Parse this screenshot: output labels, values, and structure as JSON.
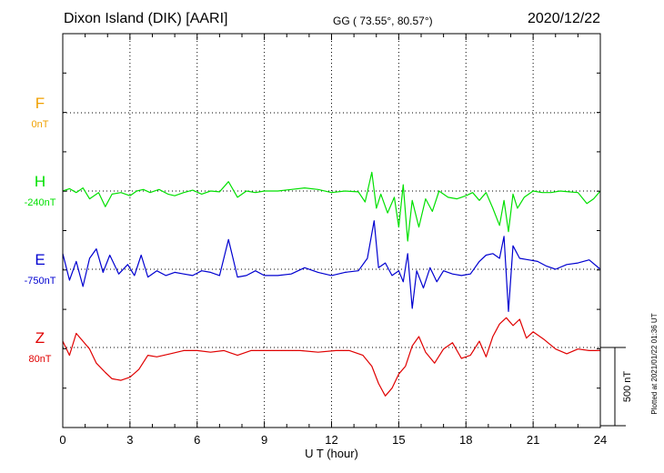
{
  "header": {
    "station": "Dixon Island (DIK)  [AARI]",
    "coords": "GG ( 73.55°,  80.57°)",
    "date": "2020/12/22"
  },
  "footer": {
    "plotted": "Plotted at 2021/01/22 01:36 UT"
  },
  "colors": {
    "F": "#f0a000",
    "H": "#00e000",
    "E": "#0000d0",
    "Z": "#e00000",
    "axis": "#000000",
    "grid": "#000000"
  },
  "chart_data": {
    "type": "line",
    "xlabel": "U T (hour)",
    "xlim": [
      0,
      24
    ],
    "x_ticks": [
      "0",
      "3",
      "6",
      "9",
      "12",
      "15",
      "18",
      "21",
      "24"
    ],
    "scale_label": "500 nT",
    "scale_nT": 500,
    "series": [
      {
        "name": "F",
        "baseline": "0nT",
        "values": []
      },
      {
        "name": "H",
        "baseline": "-240nT",
        "x": [
          0,
          0.3,
          0.6,
          0.9,
          1.2,
          1.6,
          1.9,
          2.2,
          2.6,
          3.0,
          3.3,
          3.6,
          3.9,
          4.3,
          4.7,
          5.0,
          5.4,
          5.8,
          6.2,
          6.6,
          7.0,
          7.4,
          7.8,
          8.2,
          8.6,
          9.0,
          9.6,
          10.2,
          10.8,
          11.4,
          12.0,
          12.6,
          13.2,
          13.5,
          13.8,
          14.0,
          14.2,
          14.5,
          14.8,
          15.0,
          15.2,
          15.4,
          15.6,
          15.9,
          16.2,
          16.5,
          16.8,
          17.2,
          17.6,
          18.0,
          18.3,
          18.6,
          18.9,
          19.2,
          19.5,
          19.7,
          19.9,
          20.1,
          20.3,
          20.6,
          21.0,
          21.4,
          21.8,
          22.2,
          22.6,
          23.0,
          23.4,
          23.7,
          24.0
        ],
        "values": [
          -240,
          -225,
          -250,
          -220,
          -290,
          -250,
          -340,
          -260,
          -250,
          -270,
          -240,
          -230,
          -250,
          -230,
          -260,
          -270,
          -250,
          -235,
          -260,
          -240,
          -245,
          -180,
          -280,
          -240,
          -250,
          -240,
          -240,
          -230,
          -220,
          -230,
          -250,
          -240,
          -245,
          -310,
          -120,
          -350,
          -260,
          -380,
          -280,
          -470,
          -200,
          -560,
          -300,
          -470,
          -290,
          -370,
          -240,
          -280,
          -290,
          -270,
          -250,
          -300,
          -250,
          -350,
          -460,
          -300,
          -500,
          -260,
          -350,
          -280,
          -240,
          -250,
          -250,
          -240,
          -245,
          -250,
          -320,
          -290,
          -240
        ]
      },
      {
        "name": "E",
        "baseline": "-750nT",
        "x": [
          0,
          0.3,
          0.6,
          0.9,
          1.2,
          1.5,
          1.8,
          2.1,
          2.5,
          2.9,
          3.2,
          3.5,
          3.8,
          4.2,
          4.6,
          5.0,
          5.4,
          5.8,
          6.2,
          6.6,
          7.0,
          7.4,
          7.8,
          8.2,
          8.6,
          9.0,
          9.6,
          10.2,
          10.8,
          11.4,
          12.0,
          12.6,
          13.2,
          13.6,
          13.9,
          14.1,
          14.4,
          14.7,
          15.0,
          15.2,
          15.4,
          15.6,
          15.8,
          16.1,
          16.4,
          16.7,
          17.0,
          17.4,
          17.8,
          18.2,
          18.6,
          18.9,
          19.2,
          19.5,
          19.7,
          19.9,
          20.1,
          20.4,
          20.8,
          21.2,
          21.6,
          22.0,
          22.5,
          23.0,
          23.5,
          24.0
        ],
        "values": [
          -650,
          -820,
          -700,
          -860,
          -680,
          -620,
          -770,
          -660,
          -780,
          -720,
          -790,
          -660,
          -800,
          -760,
          -790,
          -770,
          -780,
          -790,
          -760,
          -770,
          -790,
          -560,
          -800,
          -790,
          -760,
          -790,
          -790,
          -780,
          -740,
          -770,
          -790,
          -770,
          -760,
          -680,
          -440,
          -740,
          -710,
          -790,
          -760,
          -830,
          -650,
          -1000,
          -760,
          -870,
          -740,
          -830,
          -760,
          -780,
          -790,
          -780,
          -700,
          -660,
          -650,
          -680,
          -540,
          -1020,
          -600,
          -680,
          -690,
          -700,
          -730,
          -750,
          -720,
          -710,
          -690,
          -750
        ]
      },
      {
        "name": "Z",
        "baseline": "80nT",
        "x": [
          0,
          0.3,
          0.6,
          0.9,
          1.2,
          1.5,
          1.9,
          2.2,
          2.6,
          3.0,
          3.4,
          3.8,
          4.2,
          4.8,
          5.4,
          6.0,
          6.6,
          7.2,
          7.8,
          8.4,
          9.0,
          9.8,
          10.6,
          11.4,
          12.2,
          12.8,
          13.4,
          13.8,
          14.1,
          14.4,
          14.7,
          15.0,
          15.3,
          15.6,
          15.9,
          16.2,
          16.6,
          17.0,
          17.4,
          17.8,
          18.2,
          18.6,
          18.9,
          19.2,
          19.5,
          19.8,
          20.1,
          20.4,
          20.7,
          21.0,
          21.5,
          22.0,
          22.5,
          23.0,
          23.5,
          24.0
        ],
        "values": [
          120,
          30,
          170,
          120,
          70,
          -20,
          -80,
          -120,
          -130,
          -110,
          -60,
          30,
          20,
          40,
          60,
          60,
          50,
          60,
          30,
          60,
          60,
          60,
          60,
          50,
          60,
          60,
          30,
          -40,
          -150,
          -230,
          -180,
          -90,
          -40,
          90,
          150,
          50,
          -20,
          70,
          110,
          10,
          30,
          120,
          20,
          150,
          230,
          270,
          220,
          260,
          140,
          180,
          130,
          70,
          40,
          70,
          60,
          60
        ]
      }
    ],
    "grid": true
  }
}
